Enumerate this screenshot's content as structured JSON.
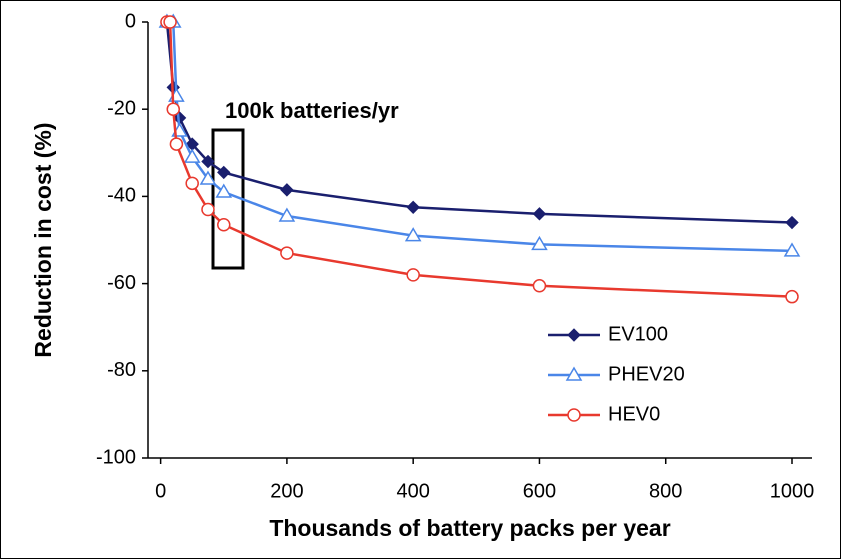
{
  "chart_data": {
    "type": "line",
    "xlabel": "Thousands of battery packs per year",
    "ylabel": "Reduction in cost (%)",
    "annotation": "100k batteries/yr",
    "xlim": [
      -20,
      1000
    ],
    "xticks": [
      0,
      200,
      400,
      600,
      800,
      1000
    ],
    "ylim": [
      -100,
      0
    ],
    "yticks": [
      -100,
      -80,
      -60,
      -40,
      -20,
      0
    ],
    "legend": "lower right",
    "series": [
      {
        "name": "EV100",
        "color": "#1a1f6e",
        "marker": "diamond",
        "x": [
          10,
          20,
          30,
          50,
          75,
          100,
          200,
          400,
          600,
          1000
        ],
        "values": [
          0,
          -15,
          -22,
          -28,
          -32,
          -34.5,
          -38.5,
          -42.5,
          -44,
          -46
        ]
      },
      {
        "name": "PHEV20",
        "color": "#4a86e8",
        "marker": "triangle",
        "x": [
          10,
          20,
          25,
          30,
          50,
          75,
          100,
          200,
          400,
          600,
          1000
        ],
        "values": [
          0,
          0,
          -17,
          -25,
          -31,
          -36,
          -39,
          -44.5,
          -49,
          -51,
          -52.5
        ]
      },
      {
        "name": "HEV0",
        "color": "#e8392e",
        "marker": "circle",
        "x": [
          10,
          15,
          20,
          25,
          50,
          75,
          100,
          200,
          400,
          600,
          1000
        ],
        "values": [
          0,
          0,
          -20,
          -28,
          -37,
          -43,
          -46.5,
          -53,
          -58,
          -60.5,
          -63
        ]
      }
    ]
  }
}
